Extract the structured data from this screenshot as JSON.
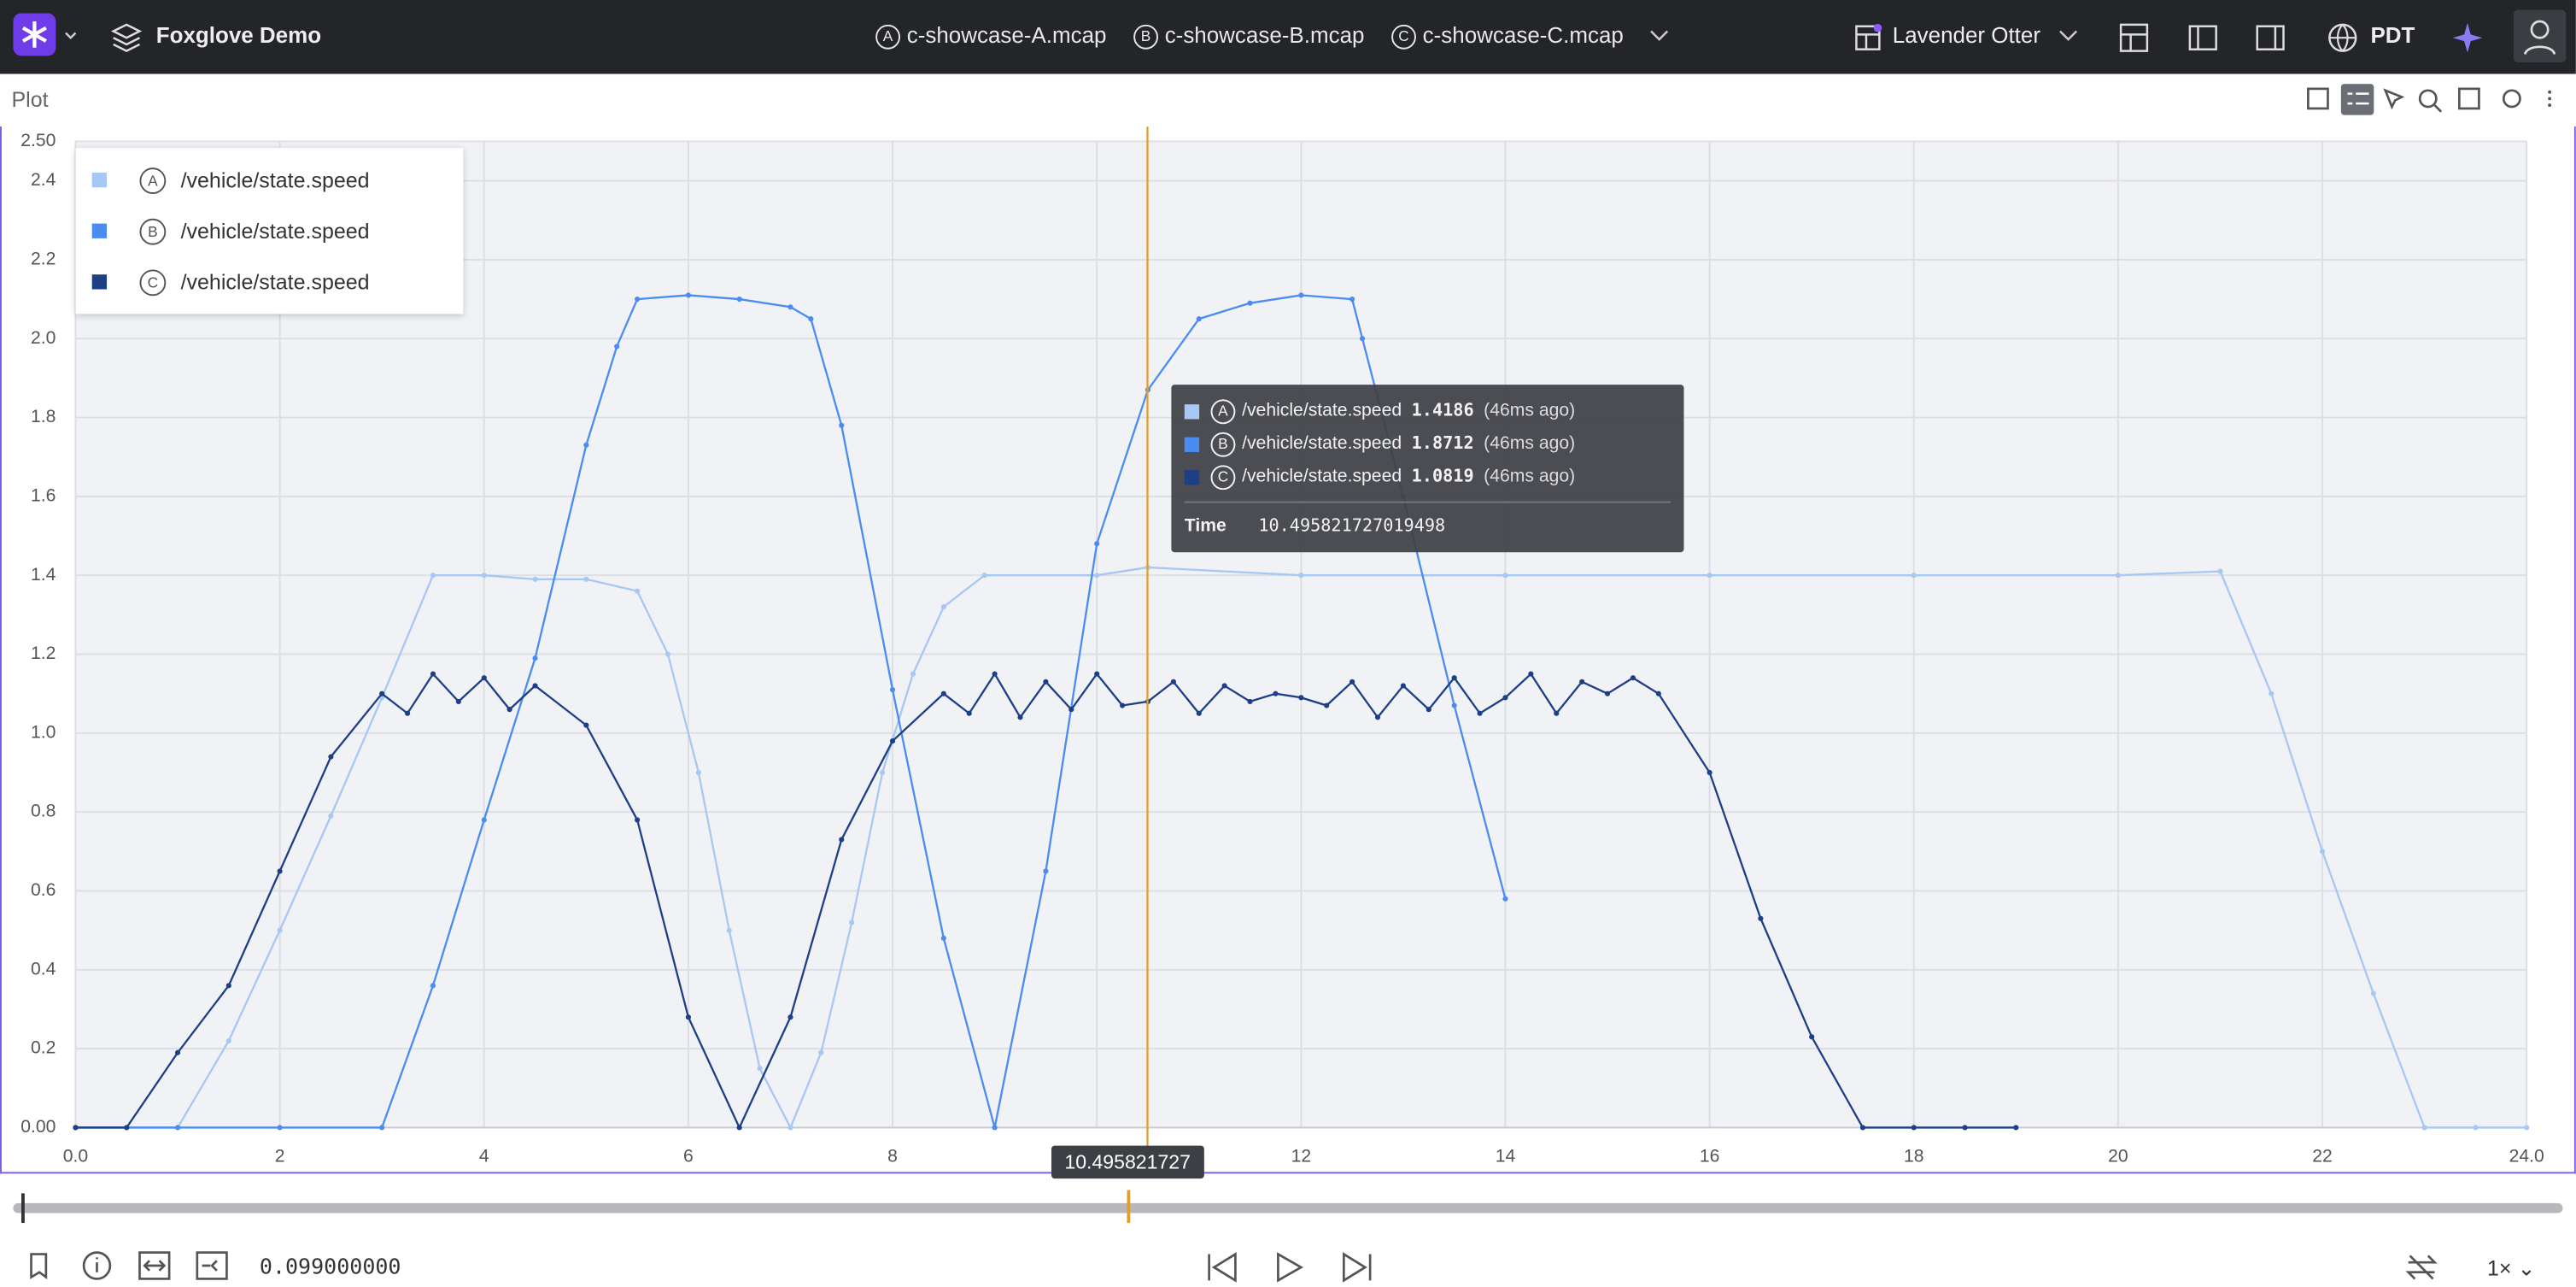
{
  "header": {
    "app_title": "Foxglove Demo",
    "files": [
      {
        "badge": "A",
        "name": "c-showcase-A.mcap"
      },
      {
        "badge": "B",
        "name": "c-showcase-B.mcap"
      },
      {
        "badge": "C",
        "name": "c-showcase-C.mcap"
      }
    ],
    "layout_name": "Lavender Otter",
    "timezone": "PDT"
  },
  "panel": {
    "title": "Plot"
  },
  "chart_data": {
    "type": "line",
    "xlim": [
      0,
      24
    ],
    "xticks": [
      {
        "value": 0,
        "label": "0.0"
      },
      2,
      4,
      6,
      8,
      10,
      12,
      14,
      16,
      18,
      20,
      22,
      {
        "value": 24,
        "label": "24.0"
      }
    ],
    "ylim": [
      0,
      2.5
    ],
    "yticks": [
      {
        "value": 0,
        "label": "0.00"
      },
      0.2,
      0.4,
      0.6,
      0.8,
      {
        "value": 1,
        "label": "1.0"
      },
      1.2,
      1.4,
      1.6,
      1.8,
      {
        "value": 2,
        "label": "2.0"
      },
      2.2,
      2.4,
      {
        "value": 2.5,
        "label": "2.50"
      }
    ],
    "grid": true,
    "legend": "top-left",
    "cursor_x": 10.495821727019498,
    "cursor_color": "#e0a030",
    "series": [
      {
        "name": "/vehicle/state.speed",
        "source": "A",
        "color": "#a7c7f4",
        "x": [
          0,
          0.5,
          1,
          1.5,
          2,
          2.5,
          3,
          3.5,
          4,
          4.5,
          5,
          5.5,
          5.8,
          6.1,
          6.4,
          6.7,
          7,
          7.3,
          7.6,
          7.9,
          8.2,
          8.5,
          8.9,
          10,
          10.5,
          12,
          14,
          16,
          18,
          20,
          21,
          21.5,
          22,
          22.5,
          23,
          23.5,
          24
        ],
        "values": [
          0,
          0,
          0,
          0.22,
          0.5,
          0.79,
          1.09,
          1.4,
          1.4,
          1.39,
          1.39,
          1.36,
          1.2,
          0.9,
          0.5,
          0.15,
          0,
          0.19,
          0.52,
          0.9,
          1.15,
          1.32,
          1.4,
          1.4,
          1.42,
          1.4,
          1.4,
          1.4,
          1.4,
          1.4,
          1.41,
          1.1,
          0.7,
          0.34,
          0,
          0,
          0
        ]
      },
      {
        "name": "/vehicle/state.speed",
        "source": "B",
        "color": "#4a8cf0",
        "x": [
          0,
          1,
          2,
          3,
          3.5,
          4,
          4.5,
          5,
          5.3,
          5.5,
          6,
          6.5,
          7,
          7.2,
          7.5,
          8,
          8.5,
          9,
          9.5,
          10,
          10.5,
          11,
          11.5,
          12,
          12.5,
          12.6,
          13,
          13.5,
          14
        ],
        "values": [
          0,
          0,
          0,
          0,
          0.36,
          0.78,
          1.19,
          1.73,
          1.98,
          2.1,
          2.11,
          2.1,
          2.08,
          2.05,
          1.78,
          1.11,
          0.48,
          0,
          0.65,
          1.48,
          1.87,
          2.05,
          2.09,
          2.11,
          2.1,
          2.0,
          1.6,
          1.07,
          0.58
        ]
      },
      {
        "name": "/vehicle/state.speed",
        "source": "C",
        "color": "#1c3f86",
        "x": [
          0,
          0.5,
          1,
          1.5,
          2,
          2.5,
          3,
          3.25,
          3.5,
          3.75,
          4,
          4.25,
          4.5,
          5,
          5.5,
          6,
          6.5,
          7,
          7.5,
          8,
          8.5,
          8.75,
          9,
          9.25,
          9.5,
          9.75,
          10,
          10.25,
          10.5,
          10.75,
          11,
          11.25,
          11.5,
          11.75,
          12,
          12.25,
          12.5,
          12.75,
          13,
          13.25,
          13.5,
          13.75,
          14,
          14.25,
          14.5,
          14.75,
          15,
          15.25,
          15.5,
          16,
          16.5,
          17,
          17.5,
          18,
          18.5,
          19
        ],
        "values": [
          0,
          0,
          0.19,
          0.36,
          0.65,
          0.94,
          1.1,
          1.05,
          1.15,
          1.08,
          1.14,
          1.06,
          1.12,
          1.02,
          0.78,
          0.28,
          0,
          0.28,
          0.73,
          0.98,
          1.1,
          1.05,
          1.15,
          1.04,
          1.13,
          1.06,
          1.15,
          1.07,
          1.08,
          1.13,
          1.05,
          1.12,
          1.08,
          1.1,
          1.09,
          1.07,
          1.13,
          1.04,
          1.12,
          1.06,
          1.14,
          1.05,
          1.09,
          1.15,
          1.05,
          1.13,
          1.1,
          1.14,
          1.1,
          0.9,
          0.53,
          0.23,
          0,
          0,
          0,
          0
        ]
      }
    ],
    "tooltip": {
      "values": [
        1.4186,
        1.8712,
        1.0819
      ],
      "ages": [
        "(46ms ago)",
        "(46ms ago)",
        "(46ms ago)"
      ],
      "time_label": "Time"
    }
  },
  "playback": {
    "cursor_label": "10.495821727",
    "current_time": "0.099000000",
    "speed": "1×"
  }
}
